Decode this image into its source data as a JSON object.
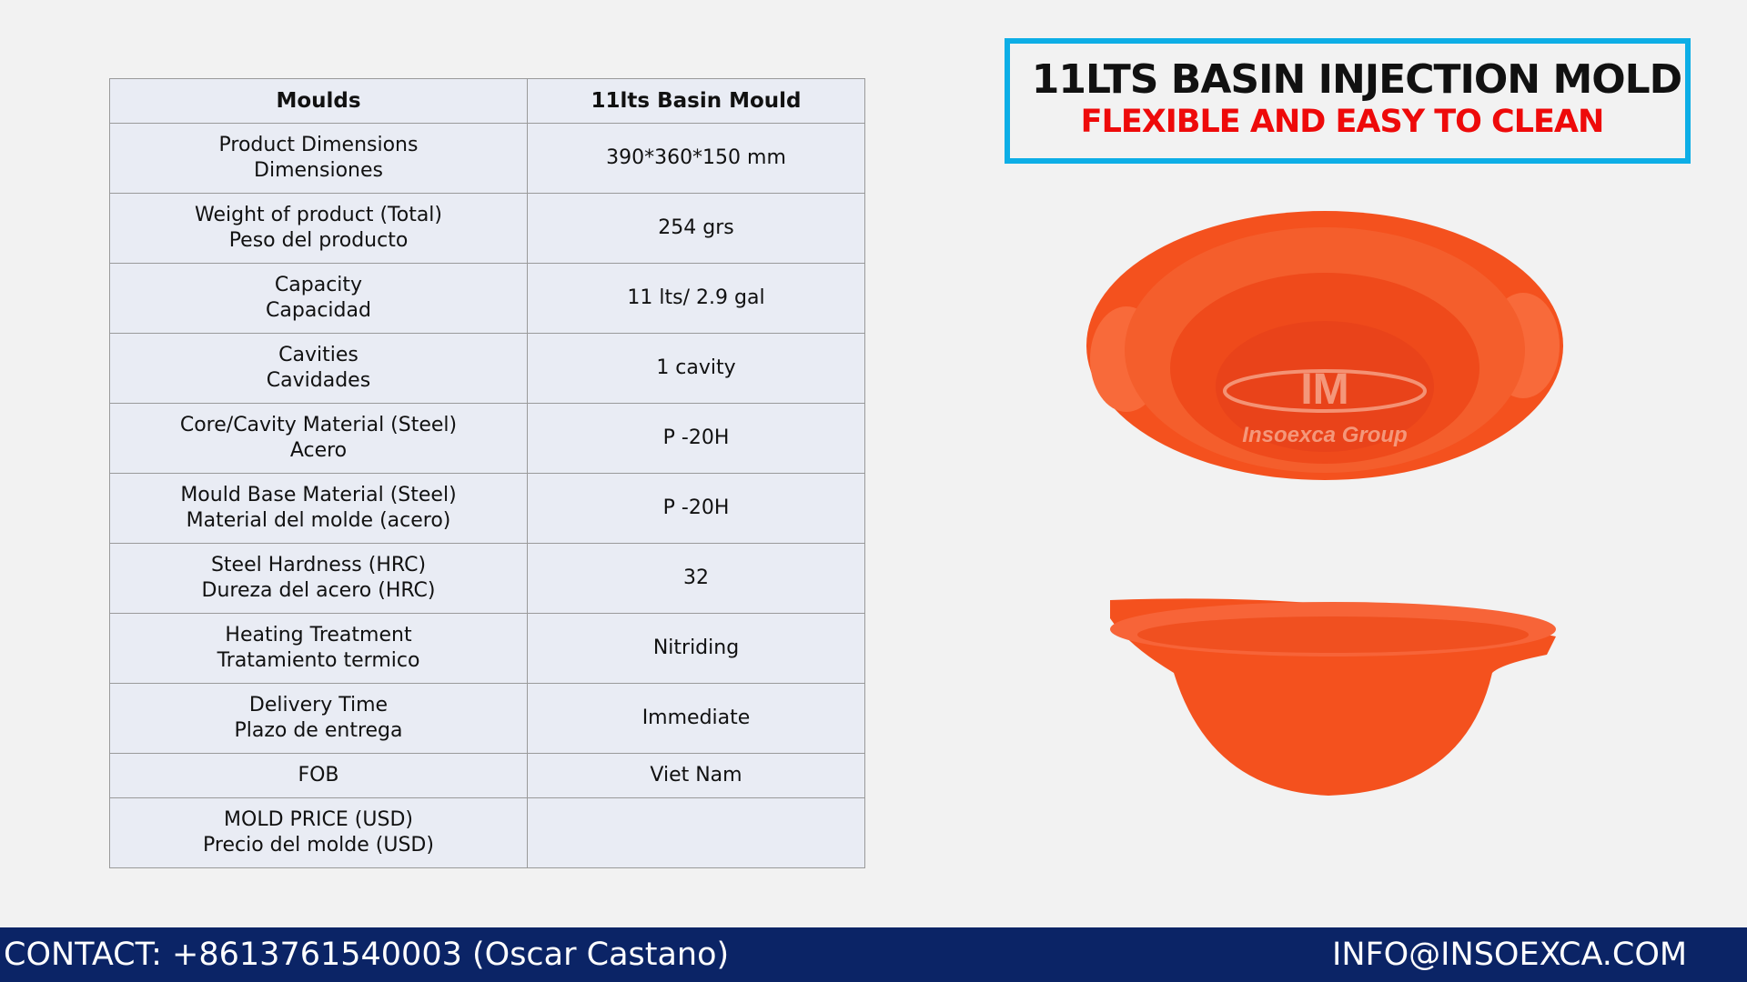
{
  "title": {
    "line1": "11LTS BASIN INJECTION MOLD",
    "line2": "FLEXIBLE  AND EASY TO CLEAN"
  },
  "colors": {
    "accent_border": "#0daee6",
    "subtitle_red": "#ee0a0a",
    "footer_bg": "#0b2466",
    "product_orange": "#f4511e"
  },
  "table": {
    "headers": [
      "Moulds",
      "11lts Basin Mould"
    ],
    "rows": [
      {
        "label_en": "Product Dimensions",
        "label_es": "Dimensiones",
        "value": "390*360*150 mm"
      },
      {
        "label_en": "Weight of product  (Total)",
        "label_es": "Peso del producto",
        "value": "254   grs"
      },
      {
        "label_en": "Capacity",
        "label_es": "Capacidad",
        "value": "11 lts/ 2.9 gal"
      },
      {
        "label_en": "Cavities",
        "label_es": "Cavidades",
        "value": "1 cavity"
      },
      {
        "label_en": "Core/Cavity Material (Steel)",
        "label_es": "Acero",
        "value": "P -20H"
      },
      {
        "label_en": "Mould Base Material (Steel)",
        "label_es": "Material del molde (acero)",
        "value": "P -20H"
      },
      {
        "label_en": "Steel Hardness (HRC)",
        "label_es": "Dureza del acero (HRC)",
        "value": "32"
      },
      {
        "label_en": "Heating Treatment",
        "label_es": "Tratamiento termico",
        "value": "Nitriding"
      },
      {
        "label_en": "Delivery Time",
        "label_es": "Plazo de entrega",
        "value": "Immediate"
      },
      {
        "label_en": "FOB",
        "label_es": "",
        "value": "Viet Nam"
      },
      {
        "label_en": "MOLD PRICE (USD)",
        "label_es": "Precio del molde (USD)",
        "value": ""
      }
    ]
  },
  "watermark": {
    "logo": "IM",
    "text": "Insoexca Group"
  },
  "footer": {
    "contact": "CONTACT: +8613761540003 (Oscar Castano)",
    "email": "INFO@INSOEXCA.COM"
  }
}
